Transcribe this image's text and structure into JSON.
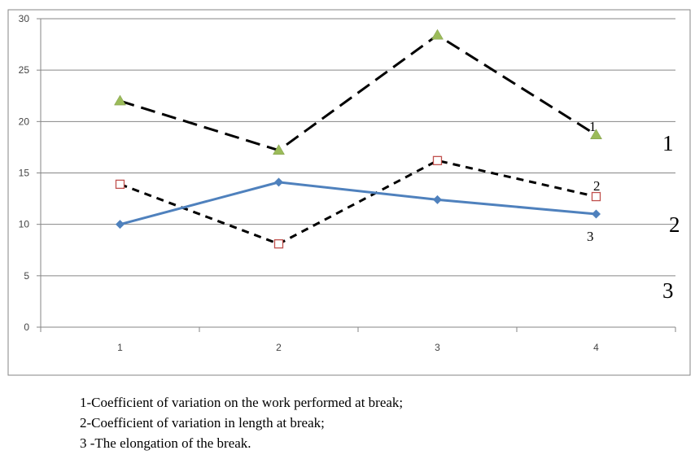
{
  "chart_data": {
    "type": "line",
    "x": [
      1,
      2,
      3,
      4
    ],
    "x_ticks": [
      "1",
      "2",
      "3",
      "4"
    ],
    "ylim": [
      0,
      30
    ],
    "y_ticks": [
      "0",
      "5",
      "10",
      "15",
      "20",
      "25",
      "30"
    ],
    "grid": true,
    "series": [
      {
        "id": "s1",
        "values": [
          22.0,
          17.2,
          28.4,
          18.7
        ],
        "color": "#000000",
        "line_style": "long-dash",
        "marker": "triangle",
        "marker_color": "#9bbb59"
      },
      {
        "id": "s2",
        "values": [
          13.9,
          8.1,
          16.2,
          12.7
        ],
        "color": "#000000",
        "line_style": "short-dash",
        "marker": "open-square",
        "marker_color": "#c0504d"
      },
      {
        "id": "s3",
        "values": [
          10.0,
          14.1,
          12.4,
          11.0
        ],
        "color": "#4f81bd",
        "line_style": "solid",
        "marker": "diamond",
        "marker_color": "#4f81bd"
      }
    ],
    "series_end_labels": [
      "1",
      "2",
      "3"
    ],
    "side_labels": [
      "1",
      "2",
      "3"
    ]
  },
  "legend_lines": [
    "1-Coefficient of variation on the work performed at break;",
    "2-Coefficient of variation in length at break;",
    "3 -The elongation of the break."
  ]
}
